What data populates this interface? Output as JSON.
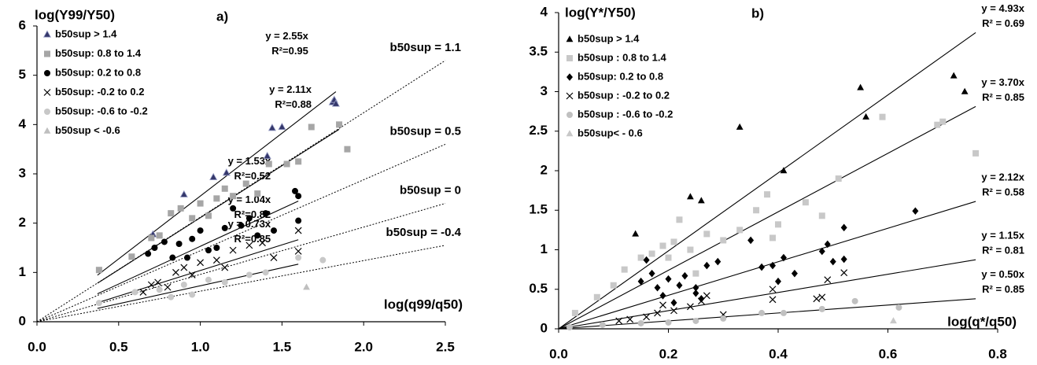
{
  "chart_data": [
    {
      "type": "scatter",
      "annotation": "a)",
      "y_label": "log(Y99/Y50)",
      "x_label": "log(q99/q50)",
      "xlim": [
        0,
        2.5
      ],
      "ylim": [
        0,
        6
      ],
      "xticks": [
        {
          "value": 0,
          "label": "0.0"
        },
        0.5,
        {
          "value": 1,
          "label": "1.0"
        },
        1.5,
        {
          "value": 2,
          "label": "2.0"
        },
        2.5
      ],
      "yticks": [
        0,
        1,
        2,
        3,
        4,
        5,
        6
      ],
      "series": [
        {
          "name": "b50sup > 1.4",
          "marker": "triangle",
          "color": "#34376b",
          "x": [
            0.71,
            0.9,
            1.08,
            1.16,
            1.41,
            1.44,
            1.5,
            1.81,
            1.82,
            1.83
          ],
          "values": [
            1.77,
            2.58,
            2.93,
            3.02,
            3.36,
            3.93,
            3.95,
            4.45,
            4.5,
            4.42
          ]
        },
        {
          "name": "b50sup: 0.8 to 1.4",
          "marker": "square",
          "color": "#a6a6a6",
          "x": [
            0.38,
            0.58,
            0.7,
            0.75,
            0.82,
            0.88,
            0.95,
            1.0,
            1.05,
            1.1,
            1.15,
            1.2,
            1.28,
            1.35,
            1.42,
            1.53,
            1.6,
            1.68,
            1.85,
            1.9
          ],
          "values": [
            1.05,
            1.32,
            1.7,
            1.75,
            2.2,
            2.3,
            2.1,
            2.4,
            2.15,
            2.5,
            2.7,
            2.55,
            2.8,
            2.6,
            3.2,
            3.2,
            3.25,
            3.95,
            4.0,
            3.5
          ]
        },
        {
          "name": "b50sup: 0.2 to 0.8",
          "marker": "circle",
          "color": "#000000",
          "x": [
            0.68,
            0.72,
            0.78,
            0.83,
            0.87,
            0.92,
            0.95,
            1.0,
            1.05,
            1.1,
            1.15,
            1.2,
            1.25,
            1.3,
            1.35,
            1.4,
            1.45,
            1.58,
            1.6,
            1.6
          ],
          "values": [
            1.38,
            1.5,
            1.62,
            1.3,
            1.58,
            1.3,
            1.68,
            1.85,
            1.45,
            1.5,
            1.9,
            2.3,
            1.95,
            2.1,
            1.75,
            2.2,
            1.85,
            2.65,
            2.55,
            2.05
          ]
        },
        {
          "name": "b50sup: -0.2 to 0.2",
          "marker": "x",
          "color": "#000000",
          "x": [
            0.65,
            0.7,
            0.74,
            0.8,
            0.85,
            0.9,
            0.95,
            1.0,
            1.1,
            1.15,
            1.2,
            1.3,
            1.38,
            1.45,
            1.6,
            1.6
          ],
          "values": [
            0.6,
            0.75,
            0.8,
            0.7,
            1.0,
            1.1,
            0.95,
            1.2,
            1.25,
            1.1,
            1.45,
            1.55,
            1.6,
            1.3,
            1.43,
            1.85
          ]
        },
        {
          "name": "b50sup: -0.6 to -0.2",
          "marker": "circle",
          "color": "#c8c8c8",
          "x": [
            0.38,
            0.6,
            0.75,
            0.82,
            0.9,
            0.95,
            1.05,
            1.15,
            1.3,
            1.4,
            1.6,
            1.75
          ],
          "values": [
            0.38,
            0.6,
            0.65,
            0.5,
            0.75,
            0.55,
            0.85,
            0.8,
            0.95,
            1.0,
            1.3,
            1.25
          ]
        },
        {
          "name": "b50sup < -0.6",
          "marker": "triangle",
          "color": "#bfbfbf",
          "x": [
            1.65
          ],
          "values": [
            0.7
          ]
        }
      ],
      "fits": [
        {
          "label": "y = 2.55x",
          "r2": "R²=0.95",
          "slope": 2.55,
          "x": [
            0.37,
            1.83
          ]
        },
        {
          "label": "y = 2.11x",
          "r2": "R²=0.88",
          "slope": 2.11,
          "x": [
            0.37,
            1.85
          ]
        },
        {
          "label": "y = 1.53x",
          "r2": "R²=0.52",
          "slope": 1.53,
          "x": [
            0.37,
            1.6
          ]
        },
        {
          "label": "y = 1.04x",
          "r2": "R²=0.82",
          "slope": 1.04,
          "x": [
            0.37,
            1.6
          ]
        },
        {
          "label": "y = 0.73x",
          "r2": "R²=0.85",
          "slope": 0.73,
          "x": [
            0.37,
            1.6
          ]
        }
      ],
      "reference_lines": [
        {
          "label": "b50sup = 1.1",
          "slope": 2.12,
          "x": [
            0,
            2.5
          ]
        },
        {
          "label": "b50sup = 0.5",
          "slope": 1.44,
          "x": [
            0,
            2.5
          ]
        },
        {
          "label": "b50sup = 0",
          "slope": 0.96,
          "x": [
            0,
            2.5
          ]
        },
        {
          "label": "b50sup = -0.4",
          "slope": 0.62,
          "x": [
            0,
            2.5
          ]
        }
      ]
    },
    {
      "type": "scatter",
      "annotation": "b)",
      "y_label": "log(Y*/Y50)",
      "x_label": "log(q*/q50)",
      "xlim": [
        0,
        0.8
      ],
      "ylim": [
        0,
        4
      ],
      "xticks": [
        {
          "value": 0,
          "label": "0.0"
        },
        0.2,
        0.4,
        0.6,
        0.8
      ],
      "yticks": [
        0,
        0.5,
        1,
        1.5,
        2,
        2.5,
        3,
        3.5,
        4
      ],
      "series": [
        {
          "name": "b50sup > 1.4",
          "marker": "triangle",
          "color": "#000000",
          "x": [
            0.14,
            0.24,
            0.26,
            0.33,
            0.41,
            0.55,
            0.56,
            0.72,
            0.74
          ],
          "values": [
            1.2,
            1.67,
            1.62,
            2.55,
            2.0,
            3.05,
            2.68,
            3.2,
            3.0
          ]
        },
        {
          "name": "b50sup : 0.8 to 1.4",
          "marker": "square",
          "color": "#c8c8c8",
          "x": [
            0.03,
            0.07,
            0.1,
            0.12,
            0.15,
            0.17,
            0.19,
            0.2,
            0.21,
            0.22,
            0.24,
            0.25,
            0.27,
            0.3,
            0.33,
            0.36,
            0.38,
            0.39,
            0.4,
            0.45,
            0.48,
            0.51,
            0.59,
            0.69,
            0.7,
            0.76
          ],
          "values": [
            0.2,
            0.4,
            0.55,
            0.75,
            0.9,
            0.95,
            1.05,
            0.9,
            1.1,
            1.38,
            1.0,
            0.7,
            1.2,
            1.12,
            1.25,
            1.5,
            1.7,
            1.15,
            1.32,
            1.6,
            1.43,
            1.9,
            2.68,
            2.58,
            2.62,
            2.22
          ]
        },
        {
          "name": "b50sup: 0.2 to 0.8",
          "marker": "diamond",
          "color": "#000000",
          "x": [
            0.15,
            0.16,
            0.17,
            0.18,
            0.19,
            0.2,
            0.21,
            0.22,
            0.23,
            0.25,
            0.25,
            0.26,
            0.27,
            0.29,
            0.35,
            0.37,
            0.39,
            0.4,
            0.41,
            0.43,
            0.48,
            0.49,
            0.5,
            0.52,
            0.52,
            0.65
          ],
          "values": [
            0.6,
            0.87,
            0.7,
            0.52,
            0.42,
            0.63,
            0.33,
            0.55,
            0.67,
            0.52,
            0.45,
            0.38,
            0.8,
            0.85,
            1.12,
            0.78,
            0.8,
            0.6,
            0.9,
            0.7,
            0.98,
            1.07,
            0.85,
            1.28,
            0.88,
            1.49
          ]
        },
        {
          "name": "b50sup : -0.2 to 0.2",
          "marker": "x",
          "color": "#000000",
          "x": [
            0.11,
            0.13,
            0.16,
            0.18,
            0.19,
            0.21,
            0.24,
            0.26,
            0.27,
            0.3,
            0.39,
            0.39,
            0.47,
            0.48,
            0.49,
            0.52
          ],
          "values": [
            0.1,
            0.12,
            0.15,
            0.2,
            0.3,
            0.23,
            0.28,
            0.35,
            0.42,
            0.18,
            0.37,
            0.5,
            0.38,
            0.4,
            0.62,
            0.71
          ]
        },
        {
          "name": "b50sup : -0.6 to -0.2",
          "marker": "circle",
          "color": "#c0c0c0",
          "x": [
            0.02,
            0.08,
            0.15,
            0.2,
            0.25,
            0.3,
            0.37,
            0.41,
            0.48,
            0.54,
            0.62
          ],
          "values": [
            0.02,
            0.05,
            0.07,
            0.08,
            0.1,
            0.13,
            0.2,
            0.2,
            0.25,
            0.35,
            0.27
          ]
        },
        {
          "name": "b50sup< - 0.6",
          "marker": "triangle",
          "color": "#c8c8c8",
          "x": [
            0.61
          ],
          "values": [
            0.1
          ]
        }
      ],
      "fits": [
        {
          "label": "y = 4.93x",
          "r2": "R² = 0.69",
          "slope": 4.93,
          "x": [
            0,
            0.76
          ]
        },
        {
          "label": "y = 3.70x",
          "r2": "R² = 0.85",
          "slope": 3.7,
          "x": [
            0,
            0.76
          ]
        },
        {
          "label": "y = 2.12x",
          "r2": "R² = 0.58",
          "slope": 2.12,
          "x": [
            0,
            0.76
          ]
        },
        {
          "label": "y = 1.15x",
          "r2": "R² = 0.81",
          "slope": 1.15,
          "x": [
            0,
            0.76
          ]
        },
        {
          "label": "y = 0.50x",
          "r2": "R² = 0.85",
          "slope": 0.5,
          "x": [
            0,
            0.76
          ]
        }
      ]
    }
  ]
}
